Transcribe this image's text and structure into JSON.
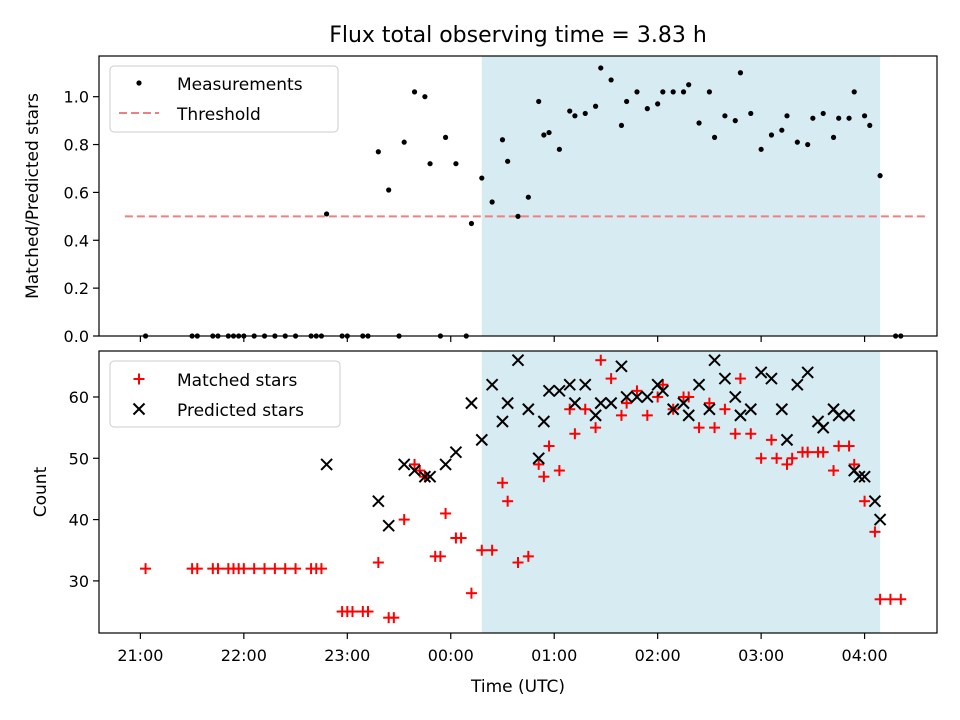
{
  "title": "Flux total observing time = 3.83 h",
  "xlabel": "Time (UTC)",
  "x_tick_labels": [
    "21:00",
    "22:00",
    "23:00",
    "00:00",
    "01:00",
    "02:00",
    "03:00",
    "04:00"
  ],
  "colors": {
    "span": "#add8e6",
    "threshold": "#f08080",
    "matched": "#ff0000",
    "predicted": "#000000",
    "measurements": "#000000"
  },
  "chart_data": [
    {
      "type": "scatter",
      "ylabel": "Matched/Predicted stars",
      "xlim": [
        "20:36",
        "04:42"
      ],
      "ylim": [
        0,
        1.17
      ],
      "y_ticks": [
        0.0,
        0.2,
        0.4,
        0.6,
        0.8,
        1.0
      ],
      "legend": {
        "position": "top-left",
        "entries": [
          "Measurements",
          "Threshold"
        ]
      },
      "observing_window": [
        "00:18",
        "04:09"
      ],
      "threshold": {
        "value": 0.5,
        "x_range": [
          "20:51",
          "04:36"
        ]
      },
      "series": [
        {
          "name": "Measurements",
          "points": [
            [
              "21:03",
              0
            ],
            [
              "21:30",
              0
            ],
            [
              "21:33",
              0
            ],
            [
              "21:42",
              0
            ],
            [
              "21:45",
              0
            ],
            [
              "21:51",
              0
            ],
            [
              "21:54",
              0
            ],
            [
              "21:57",
              0
            ],
            [
              "22:00",
              0
            ],
            [
              "22:06",
              0
            ],
            [
              "22:12",
              0
            ],
            [
              "22:18",
              0
            ],
            [
              "22:24",
              0
            ],
            [
              "22:30",
              0
            ],
            [
              "22:39",
              0
            ],
            [
              "22:42",
              0
            ],
            [
              "22:45",
              0
            ],
            [
              "22:48",
              0.51
            ],
            [
              "22:57",
              0
            ],
            [
              "23:00",
              0
            ],
            [
              "23:09",
              0
            ],
            [
              "23:12",
              0
            ],
            [
              "23:18",
              0.77
            ],
            [
              "23:24",
              0.61
            ],
            [
              "23:30",
              0
            ],
            [
              "23:33",
              0.81
            ],
            [
              "23:39",
              1.02
            ],
            [
              "23:45",
              1.0
            ],
            [
              "23:48",
              0.72
            ],
            [
              "23:54",
              0
            ],
            [
              "23:57",
              0.83
            ],
            [
              "00:03",
              0.72
            ],
            [
              "00:09",
              0
            ],
            [
              "00:12",
              0.47
            ],
            [
              "00:18",
              0.66
            ],
            [
              "00:24",
              0.56
            ],
            [
              "00:30",
              0.82
            ],
            [
              "00:33",
              0.73
            ],
            [
              "00:39",
              0.5
            ],
            [
              "00:45",
              0.58
            ],
            [
              "00:51",
              0.98
            ],
            [
              "00:54",
              0.84
            ],
            [
              "00:57",
              0.85
            ],
            [
              "01:03",
              0.78
            ],
            [
              "01:09",
              0.94
            ],
            [
              "01:12",
              0.92
            ],
            [
              "01:18",
              0.93
            ],
            [
              "01:24",
              0.96
            ],
            [
              "01:27",
              1.12
            ],
            [
              "01:33",
              1.07
            ],
            [
              "01:39",
              0.88
            ],
            [
              "01:42",
              0.98
            ],
            [
              "01:48",
              1.02
            ],
            [
              "01:54",
              0.95
            ],
            [
              "02:00",
              0.97
            ],
            [
              "02:03",
              1.02
            ],
            [
              "02:09",
              1.02
            ],
            [
              "02:15",
              1.02
            ],
            [
              "02:18",
              1.05
            ],
            [
              "02:24",
              0.89
            ],
            [
              "02:30",
              1.02
            ],
            [
              "02:33",
              0.83
            ],
            [
              "02:39",
              0.92
            ],
            [
              "02:45",
              0.9
            ],
            [
              "02:48",
              1.1
            ],
            [
              "02:54",
              0.93
            ],
            [
              "03:00",
              0.78
            ],
            [
              "03:06",
              0.84
            ],
            [
              "03:12",
              0.86
            ],
            [
              "03:15",
              0.92
            ],
            [
              "03:21",
              0.81
            ],
            [
              "03:27",
              0.8
            ],
            [
              "03:30",
              0.91
            ],
            [
              "03:36",
              0.93
            ],
            [
              "03:42",
              0.83
            ],
            [
              "03:45",
              0.91
            ],
            [
              "03:51",
              0.91
            ],
            [
              "03:54",
              1.02
            ],
            [
              "04:00",
              0.92
            ],
            [
              "04:03",
              0.88
            ],
            [
              "04:09",
              0.67
            ],
            [
              "04:18",
              0
            ],
            [
              "04:21",
              0
            ]
          ]
        }
      ]
    },
    {
      "type": "scatter",
      "ylabel": "Count",
      "xlabel": "Time (UTC)",
      "xlim": [
        "20:36",
        "04:42"
      ],
      "ylim": [
        21.5,
        67.5
      ],
      "y_ticks": [
        30,
        40,
        50,
        60
      ],
      "legend": {
        "position": "top-left",
        "entries": [
          "Matched stars",
          "Predicted stars"
        ]
      },
      "observing_window": [
        "00:18",
        "04:09"
      ],
      "series": [
        {
          "name": "Matched stars",
          "points": [
            [
              "21:03",
              32
            ],
            [
              "21:30",
              32
            ],
            [
              "21:33",
              32
            ],
            [
              "21:42",
              32
            ],
            [
              "21:45",
              32
            ],
            [
              "21:51",
              32
            ],
            [
              "21:54",
              32
            ],
            [
              "21:57",
              32
            ],
            [
              "22:00",
              32
            ],
            [
              "22:06",
              32
            ],
            [
              "22:12",
              32
            ],
            [
              "22:18",
              32
            ],
            [
              "22:24",
              32
            ],
            [
              "22:30",
              32
            ],
            [
              "22:39",
              32
            ],
            [
              "22:42",
              32
            ],
            [
              "22:45",
              32
            ],
            [
              "22:57",
              25
            ],
            [
              "23:00",
              25
            ],
            [
              "23:03",
              25
            ],
            [
              "23:09",
              25
            ],
            [
              "23:12",
              25
            ],
            [
              "23:18",
              33
            ],
            [
              "23:24",
              24
            ],
            [
              "23:27",
              24
            ],
            [
              "23:33",
              40
            ],
            [
              "23:39",
              49
            ],
            [
              "23:42",
              48
            ],
            [
              "23:45",
              47
            ],
            [
              "23:51",
              34
            ],
            [
              "23:54",
              34
            ],
            [
              "23:57",
              41
            ],
            [
              "00:03",
              37
            ],
            [
              "00:06",
              37
            ],
            [
              "00:12",
              28
            ],
            [
              "00:18",
              35
            ],
            [
              "00:24",
              35
            ],
            [
              "00:30",
              46
            ],
            [
              "00:33",
              43
            ],
            [
              "00:39",
              33
            ],
            [
              "00:45",
              34
            ],
            [
              "00:51",
              49
            ],
            [
              "00:54",
              47
            ],
            [
              "00:57",
              52
            ],
            [
              "01:03",
              48
            ],
            [
              "01:09",
              58
            ],
            [
              "01:12",
              54
            ],
            [
              "01:18",
              58
            ],
            [
              "01:24",
              55
            ],
            [
              "01:27",
              66
            ],
            [
              "01:33",
              63
            ],
            [
              "01:39",
              57
            ],
            [
              "01:42",
              59
            ],
            [
              "01:48",
              61
            ],
            [
              "01:54",
              57
            ],
            [
              "02:00",
              60
            ],
            [
              "02:03",
              62
            ],
            [
              "02:09",
              58
            ],
            [
              "02:15",
              60
            ],
            [
              "02:18",
              60
            ],
            [
              "02:24",
              55
            ],
            [
              "02:30",
              59
            ],
            [
              "02:33",
              55
            ],
            [
              "02:39",
              58
            ],
            [
              "02:45",
              54
            ],
            [
              "02:48",
              63
            ],
            [
              "02:54",
              54
            ],
            [
              "03:00",
              50
            ],
            [
              "03:06",
              53
            ],
            [
              "03:09",
              50
            ],
            [
              "03:15",
              49
            ],
            [
              "03:18",
              50
            ],
            [
              "03:24",
              51
            ],
            [
              "03:27",
              51
            ],
            [
              "03:33",
              51
            ],
            [
              "03:36",
              51
            ],
            [
              "03:42",
              48
            ],
            [
              "03:45",
              52
            ],
            [
              "03:51",
              52
            ],
            [
              "03:54",
              49
            ],
            [
              "04:00",
              43
            ],
            [
              "04:06",
              38
            ],
            [
              "04:09",
              27
            ],
            [
              "04:15",
              27
            ],
            [
              "04:21",
              27
            ]
          ]
        },
        {
          "name": "Predicted stars",
          "points": [
            [
              "22:48",
              49
            ],
            [
              "23:18",
              43
            ],
            [
              "23:24",
              39
            ],
            [
              "23:33",
              49
            ],
            [
              "23:39",
              48
            ],
            [
              "23:45",
              47
            ],
            [
              "23:48",
              47
            ],
            [
              "23:57",
              49
            ],
            [
              "00:03",
              51
            ],
            [
              "00:12",
              59
            ],
            [
              "00:18",
              53
            ],
            [
              "00:24",
              62
            ],
            [
              "00:30",
              56
            ],
            [
              "00:33",
              59
            ],
            [
              "00:39",
              66
            ],
            [
              "00:45",
              58
            ],
            [
              "00:51",
              50
            ],
            [
              "00:54",
              56
            ],
            [
              "00:57",
              61
            ],
            [
              "01:03",
              61
            ],
            [
              "01:09",
              62
            ],
            [
              "01:12",
              59
            ],
            [
              "01:18",
              62
            ],
            [
              "01:24",
              57
            ],
            [
              "01:27",
              59
            ],
            [
              "01:33",
              59
            ],
            [
              "01:39",
              65
            ],
            [
              "01:42",
              60
            ],
            [
              "01:48",
              60
            ],
            [
              "01:54",
              60
            ],
            [
              "02:00",
              62
            ],
            [
              "02:03",
              61
            ],
            [
              "02:09",
              58
            ],
            [
              "02:15",
              59
            ],
            [
              "02:18",
              57
            ],
            [
              "02:24",
              62
            ],
            [
              "02:30",
              58
            ],
            [
              "02:33",
              66
            ],
            [
              "02:39",
              63
            ],
            [
              "02:45",
              60
            ],
            [
              "02:48",
              57
            ],
            [
              "02:54",
              58
            ],
            [
              "03:00",
              64
            ],
            [
              "03:06",
              63
            ],
            [
              "03:12",
              58
            ],
            [
              "03:15",
              53
            ],
            [
              "03:21",
              62
            ],
            [
              "03:27",
              64
            ],
            [
              "03:33",
              56
            ],
            [
              "03:36",
              55
            ],
            [
              "03:42",
              58
            ],
            [
              "03:45",
              57
            ],
            [
              "03:51",
              57
            ],
            [
              "03:54",
              48
            ],
            [
              "03:57",
              47
            ],
            [
              "04:00",
              47
            ],
            [
              "04:06",
              43
            ],
            [
              "04:09",
              40
            ]
          ]
        }
      ]
    }
  ]
}
